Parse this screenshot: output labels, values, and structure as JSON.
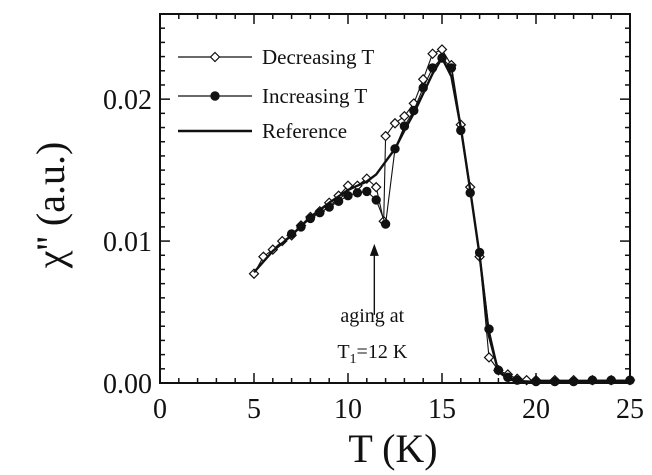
{
  "chart_data": {
    "type": "line",
    "xlabel": "T (K)",
    "ylabel": "χ'' (a.u.)",
    "xlim": [
      0,
      25
    ],
    "ylim": [
      0,
      0.026
    ],
    "xticks": [
      0,
      5,
      10,
      15,
      20,
      25
    ],
    "xtick_labels": [
      "0",
      "5",
      "10",
      "15",
      "20",
      "25"
    ],
    "yticks": [
      0,
      0.01,
      0.02
    ],
    "ytick_labels": [
      "0.00",
      "0.01",
      "0.02"
    ],
    "grid": false,
    "legend_position": "top-left",
    "series": [
      {
        "name": "Decreasing T",
        "marker": "open-diamond",
        "color": "#111111",
        "x": [
          5.0,
          5.5,
          6.0,
          6.5,
          7.0,
          7.5,
          8.0,
          8.5,
          9.0,
          9.5,
          10.0,
          10.5,
          11.0,
          11.5,
          11.9,
          12.0,
          12.5,
          13.0,
          13.5,
          14.0,
          14.5,
          15.0,
          15.5,
          16.0,
          16.5,
          17.0,
          17.5,
          18.0,
          18.5,
          19.0,
          19.5,
          20.0,
          21.0,
          22.0,
          23.0,
          24.0,
          25.0
        ],
        "y": [
          0.0077,
          0.0089,
          0.0094,
          0.01,
          0.0104,
          0.0111,
          0.0117,
          0.0121,
          0.0127,
          0.0132,
          0.0139,
          0.0139,
          0.0144,
          0.0138,
          0.0114,
          0.0174,
          0.0183,
          0.0188,
          0.0197,
          0.0214,
          0.0232,
          0.0235,
          0.0224,
          0.0182,
          0.0138,
          0.0089,
          0.0018,
          0.0009,
          0.0006,
          0.0003,
          0.0002,
          0.0002,
          0.0002,
          0.0002,
          0.0002,
          0.0002,
          0.0002
        ]
      },
      {
        "name": "Increasing T",
        "marker": "filled-circle",
        "color": "#111111",
        "x": [
          7.0,
          7.5,
          8.0,
          8.5,
          9.0,
          9.5,
          10.0,
          10.5,
          11.0,
          11.5,
          12.0,
          12.5,
          13.0,
          13.5,
          14.0,
          14.5,
          15.0,
          15.5,
          16.0,
          16.5,
          17.0,
          17.5,
          18.0,
          18.5,
          19.0,
          20.0,
          21.0,
          22.0,
          23.0,
          24.0,
          25.0
        ],
        "y": [
          0.0105,
          0.011,
          0.0116,
          0.012,
          0.0124,
          0.0128,
          0.0132,
          0.0134,
          0.0135,
          0.0129,
          0.0112,
          0.0165,
          0.0181,
          0.0192,
          0.0208,
          0.0222,
          0.0229,
          0.0222,
          0.0178,
          0.0134,
          0.0092,
          0.0038,
          0.0009,
          0.0004,
          0.0002,
          0.0001,
          0.0001,
          0.0001,
          0.0002,
          0.0002,
          0.0002
        ]
      },
      {
        "name": "Reference",
        "marker": "none",
        "color": "#111111",
        "x": [
          5.0,
          6.0,
          7.0,
          8.0,
          9.0,
          10.0,
          10.5,
          11.0,
          11.5,
          12.0,
          12.5,
          13.0,
          13.5,
          14.0,
          14.5,
          15.0,
          15.5,
          16.0,
          16.5,
          17.0,
          17.5,
          18.0,
          18.5,
          19.0,
          20.0,
          21.0,
          22.0,
          23.0,
          24.0,
          25.0
        ],
        "y": [
          0.0078,
          0.0093,
          0.0104,
          0.0117,
          0.0127,
          0.0136,
          0.0139,
          0.0142,
          0.0147,
          0.0156,
          0.0165,
          0.0178,
          0.019,
          0.0204,
          0.0218,
          0.0229,
          0.0216,
          0.018,
          0.0136,
          0.009,
          0.0033,
          0.0008,
          0.0003,
          0.0001,
          0.0001,
          0.0001,
          0.0001,
          0.0001,
          0.0001,
          0.0001
        ]
      }
    ],
    "annotations": [
      {
        "id": "aging-line1",
        "text": "aging at"
      },
      {
        "id": "aging-line2-prefix",
        "text": "T"
      },
      {
        "id": "aging-line2-sub",
        "text": "1"
      },
      {
        "id": "aging-line2-rest",
        "text": "=12 K"
      }
    ],
    "annotation_arrow": {
      "x": 11.4,
      "y_from": 0.0048,
      "y_to": 0.0098
    }
  }
}
